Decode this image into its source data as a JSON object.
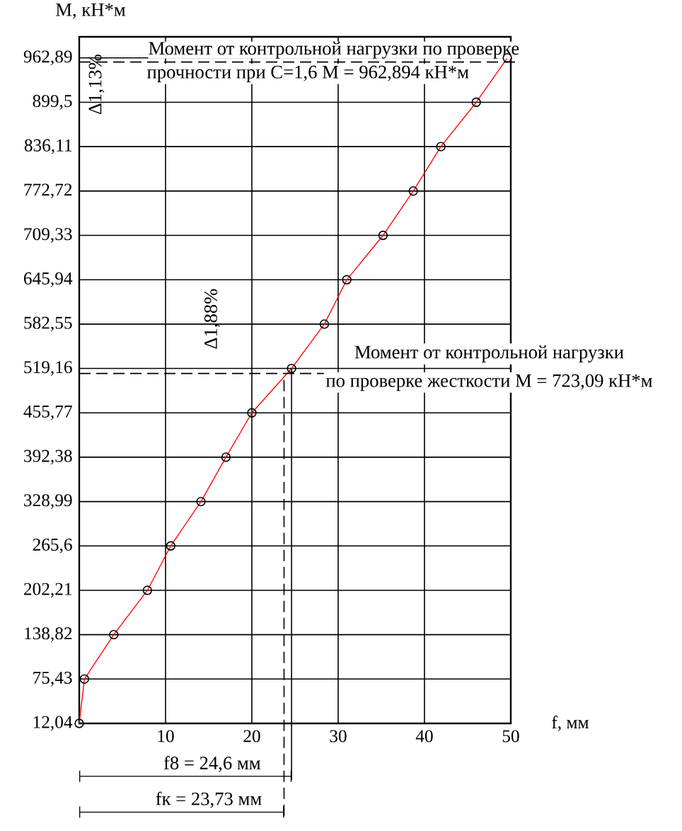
{
  "chart_data": {
    "type": "line",
    "xlabel": "f, мм",
    "ylabel": "М, кН*м",
    "xlim": [
      0,
      50
    ],
    "ylim": [
      12.04,
      993
    ],
    "xticks": [
      10,
      20,
      30,
      40,
      50
    ],
    "yticks": [
      {
        "value": 12.04,
        "label": "12,04"
      },
      {
        "value": 75.43,
        "label": "75,43"
      },
      {
        "value": 138.82,
        "label": "138,82"
      },
      {
        "value": 202.21,
        "label": "202,21"
      },
      {
        "value": 265.6,
        "label": "265,6"
      },
      {
        "value": 328.99,
        "label": "328,99"
      },
      {
        "value": 392.38,
        "label": "392,38"
      },
      {
        "value": 455.77,
        "label": "455,77"
      },
      {
        "value": 519.16,
        "label": "519,16"
      },
      {
        "value": 582.55,
        "label": "582,55"
      },
      {
        "value": 645.94,
        "label": "645,94"
      },
      {
        "value": 709.33,
        "label": "709,33"
      },
      {
        "value": 772.72,
        "label": "772,72"
      },
      {
        "value": 836.11,
        "label": "836,11"
      },
      {
        "value": 899.5,
        "label": "899,5"
      },
      {
        "value": 962.89,
        "label": "962,89"
      }
    ],
    "grid": true,
    "marker": "circle",
    "line_style": "solid",
    "series": [
      {
        "color": "#ff0000",
        "x": [
          0,
          0.6,
          4.0,
          7.9,
          10.6,
          14.1,
          17.0,
          20.0,
          24.6,
          28.4,
          31.0,
          35.2,
          38.7,
          41.9,
          46.0,
          49.6
        ],
        "values": [
          12.04,
          75.43,
          138.82,
          202.21,
          265.6,
          328.99,
          392.38,
          455.77,
          519.16,
          582.55,
          645.94,
          709.33,
          772.72,
          836.11,
          899.5,
          962.89
        ]
      }
    ],
    "ref_lines": [
      {
        "axis": "y",
        "value": 957,
        "line_style": "dashed"
      },
      {
        "axis": "y",
        "value": 512,
        "line_style": "dashed"
      },
      {
        "axis": "x",
        "value": 24.6,
        "line_style": "solid"
      },
      {
        "axis": "x",
        "value": 23.73,
        "line_style": "dashed"
      }
    ],
    "annotations": [
      "Момент от контрольной нагрузки по проверке",
      "прочности при С=1,6 М = 962,894 кН*м",
      "Δ1,13%",
      "Δ1,88%",
      "Момент от контрольной нагрузки",
      "по проверке жесткости М = 723,09 кН*м",
      "f8 = 24,6 мм",
      "fк = 23,73 мм"
    ]
  }
}
